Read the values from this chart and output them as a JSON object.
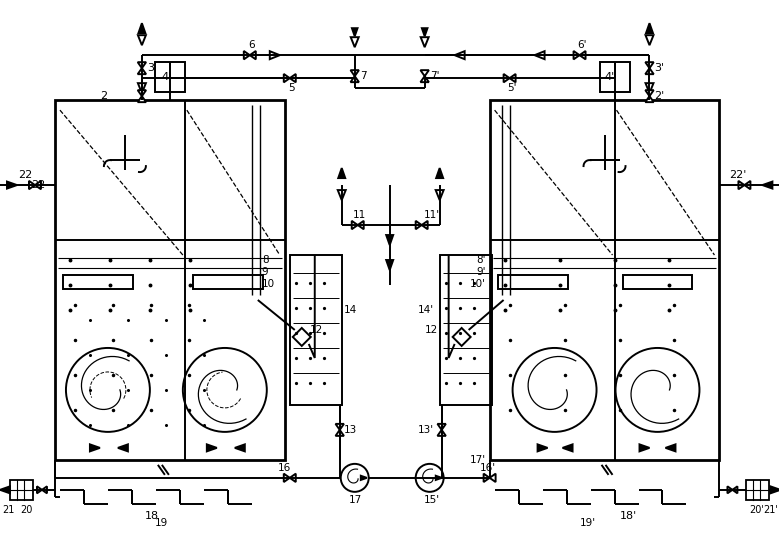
{
  "bg": "#ffffff",
  "lc": "#000000",
  "lw": 1.4,
  "lw2": 2.0,
  "fig_w": 7.8,
  "fig_h": 5.59,
  "dpi": 100
}
